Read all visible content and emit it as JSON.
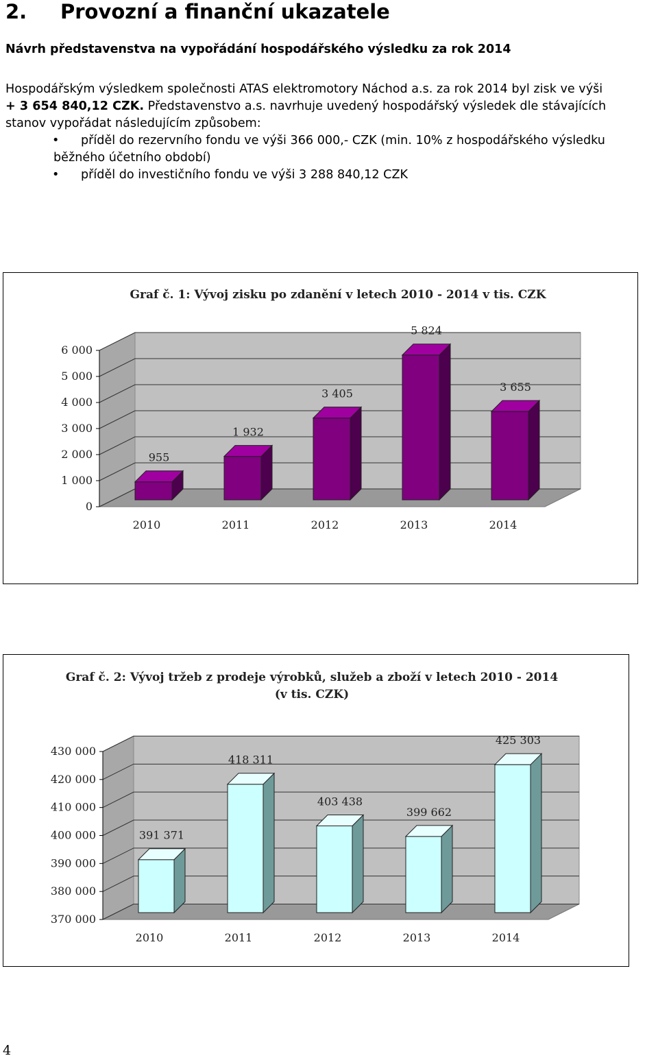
{
  "document": {
    "section_number": "2.",
    "section_title": "Provozní a finanční ukazatele",
    "subheading": "Návrh představenstva na vypořádání hospodářského výsledku za rok 2014",
    "paragraph": {
      "line1": "Hospodářským výsledkem společnosti ATAS elektromotory Náchod a.s. za rok 2014 byl zisk ve výši",
      "line2_bold": "+ 3 654 840,12 CZK.",
      "line2_rest": " Představenstvo a.s. navrhuje uvedený hospodářský výsledek dle stávajících",
      "line3": "stanov vypořádat následujícím způsobem:"
    },
    "bullets": [
      {
        "symbol": "•",
        "text": "příděl do rezervního fondu ve výši 366 000,- CZK (min. 10% z hospodářského výsledku",
        "cont": "běžného účetního období)"
      },
      {
        "symbol": "•",
        "text": "příděl do investičního fondu ve výši 3 288 840,12 CZK",
        "cont": ""
      }
    ],
    "page_number": "4"
  },
  "chart_data": [
    {
      "type": "bar",
      "title": "Graf č. 1: Vývoj  zisku po  zdanění  v letech 2010 - 2014 v tis. CZK",
      "categories": [
        "2010",
        "2011",
        "2012",
        "2013",
        "2014"
      ],
      "values": [
        955,
        1932,
        3405,
        5824,
        3655
      ],
      "value_labels": [
        "955",
        "1 932",
        "3 405",
        "5 824",
        "3 655"
      ],
      "ylim": [
        0,
        6000
      ],
      "yticks": [
        0,
        1000,
        2000,
        3000,
        4000,
        5000,
        6000
      ],
      "ytick_labels": [
        "0",
        "1 000",
        "2 000",
        "3 000",
        "4 000",
        "5 000",
        "6 000"
      ],
      "bar_color": "#800080",
      "bar_side_color": "#4d004d",
      "bar_top_color": "#a000a0",
      "wall_color": "#c0c0c0",
      "floor_color": "#999999",
      "grid": true
    },
    {
      "type": "bar",
      "title_lines": [
        "Graf č. 2: Vývoj  tržeb z prodeje  výrobků,  služeb a zboží v letech 2010 - 2014",
        "(v tis. CZK)"
      ],
      "categories": [
        "2010",
        "2011",
        "2012",
        "2013",
        "2014"
      ],
      "values": [
        391371,
        418311,
        403438,
        399662,
        425303
      ],
      "value_labels": [
        "391 371",
        "418 311",
        "403 438",
        "399 662",
        "425 303"
      ],
      "ylim": [
        370000,
        430000
      ],
      "yticks": [
        370000,
        380000,
        390000,
        400000,
        410000,
        420000,
        430000
      ],
      "ytick_labels": [
        "370 000",
        "380 000",
        "390 000",
        "400 000",
        "410 000",
        "420 000",
        "430 000"
      ],
      "bar_color": "#ccffff",
      "bar_side_color": "#6f9a9a",
      "bar_top_color": "#e8ffff",
      "wall_color": "#c0c0c0",
      "floor_color": "#999999",
      "grid": true
    }
  ]
}
